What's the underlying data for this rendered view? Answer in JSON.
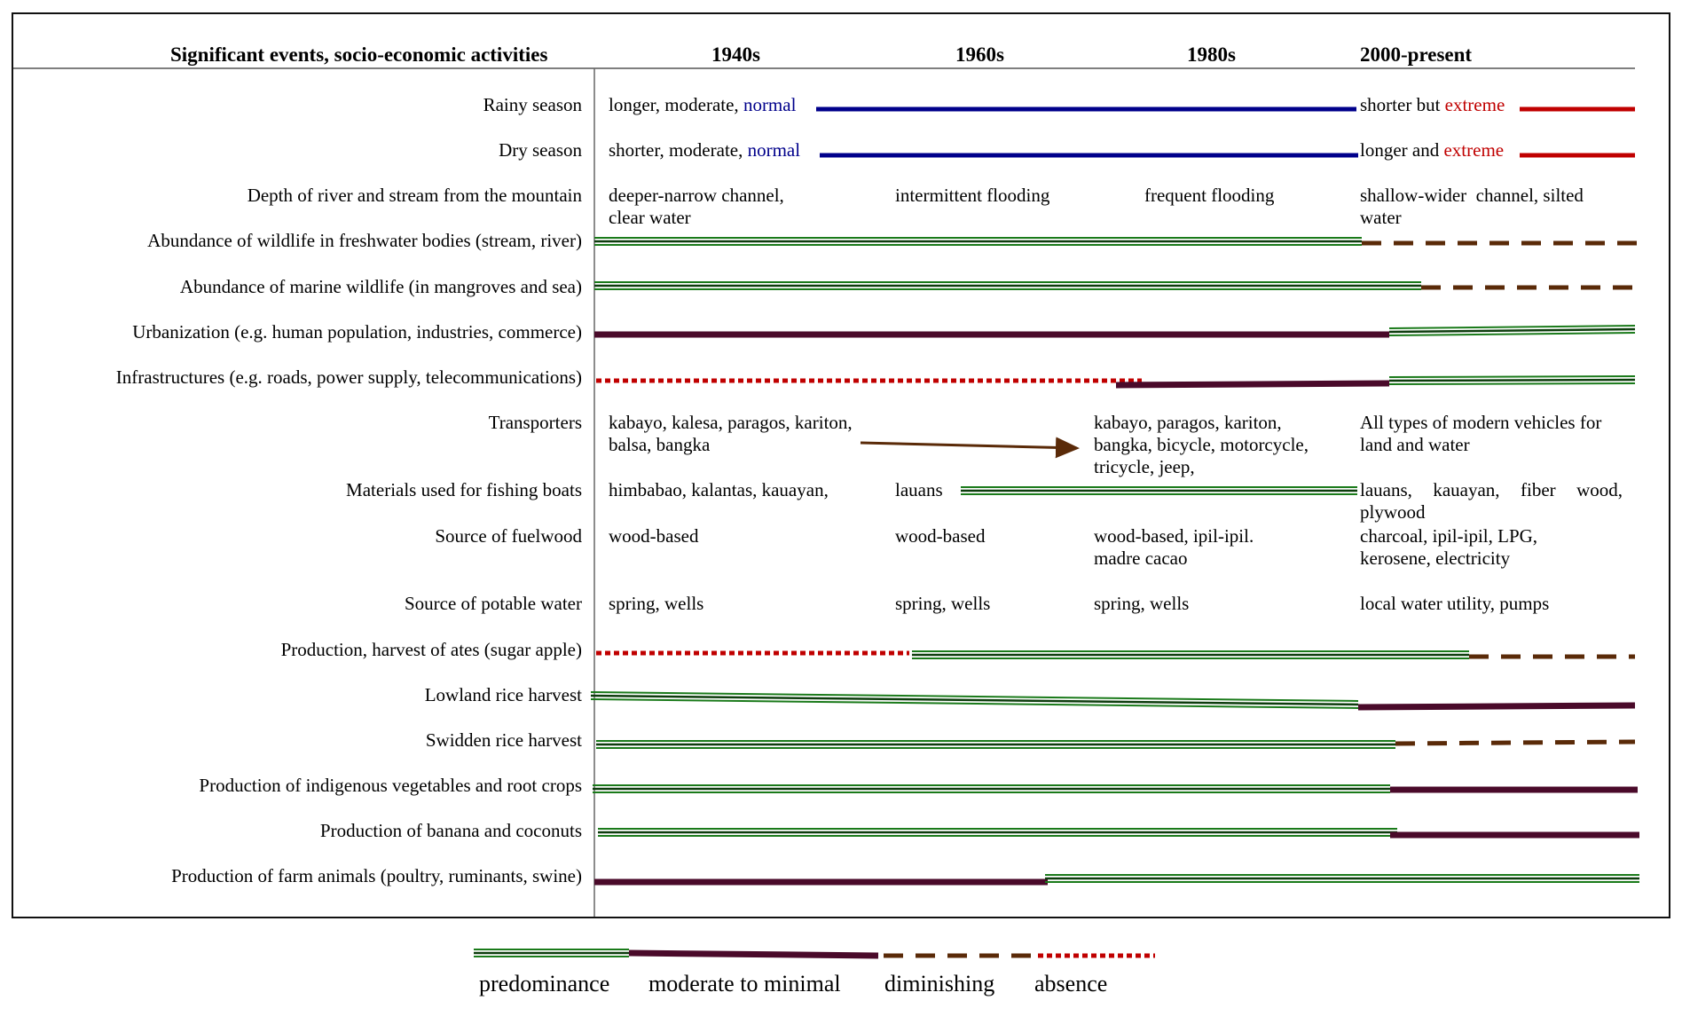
{
  "header": {
    "first_column": "Significant events, socio-economic activities",
    "periods": [
      "1940s",
      "1960s",
      "1980s",
      "2000-present"
    ]
  },
  "rows": [
    {
      "label": "Rainy season",
      "cells": {
        "c1940": "longer, moderate,",
        "c1940_accent": "normal",
        "c2000": "shorter but",
        "c2000_accent": "extreme"
      }
    },
    {
      "label": "Dry season",
      "cells": {
        "c1940": "shorter, moderate,",
        "c1940_accent": "normal",
        "c2000": "longer and",
        "c2000_accent": "extreme"
      }
    },
    {
      "label": "Depth of river and stream from the mountain",
      "cells": {
        "c1940_l1": "deeper-narrow channel,",
        "c1940_l2": "clear water",
        "c1960": "intermittent flooding",
        "c1980": "frequent flooding",
        "c2000_l1": "shallow-wider  channel, silted",
        "c2000_l2": "water"
      }
    },
    {
      "label": "Abundance of wildlife in freshwater bodies (stream, river)"
    },
    {
      "label": "Abundance of marine wildlife (in mangroves and sea)"
    },
    {
      "label": "Urbanization (e.g. human population, industries, commerce)"
    },
    {
      "label": "Infrastructures (e.g. roads, power supply, telecommunications)"
    },
    {
      "label": "Transporters",
      "cells": {
        "c1940_l1": "kabayo, kalesa, paragos, kariton,",
        "c1940_l2": "balsa, bangka",
        "c1980_l1": "kabayo, paragos, kariton,",
        "c1980_l2": "bangka, bicycle, motorcycle,",
        "c1980_l3": "tricycle, jeep,",
        "c2000_l1": "All types of modern vehicles for",
        "c2000_l2": "land and water"
      }
    },
    {
      "label": "Materials used for fishing boats",
      "cells": {
        "c1940": "himbabao, kalantas, kauayan,",
        "c1960": "lauans",
        "c2000_l1": "lauans,  kauayan,  fiber  wood,",
        "c2000_l2": "plywood"
      }
    },
    {
      "label": "Source of fuelwood",
      "cells": {
        "c1940": "wood-based",
        "c1960": "wood-based",
        "c1980_l1": "wood-based, ipil-ipil.",
        "c1980_l2": "madre cacao",
        "c2000_l1": "charcoal, ipil-ipil, LPG,",
        "c2000_l2": "kerosene, electricity"
      }
    },
    {
      "label": "Source of potable water",
      "cells": {
        "c1940": "spring, wells",
        "c1960": "spring, wells",
        "c1980": "spring, wells",
        "c2000": "local water utility, pumps"
      }
    },
    {
      "label": "Production, harvest of ates (sugar apple)"
    },
    {
      "label": "Lowland rice harvest"
    },
    {
      "label": "Swidden rice harvest"
    },
    {
      "label": "Production of indigenous vegetables and root crops"
    },
    {
      "label": "Production of banana and coconuts"
    },
    {
      "label": "Production of farm animals (poultry, ruminants, swine)"
    }
  ],
  "legend": {
    "predominance": "predominance",
    "moderate": "moderate to minimal",
    "diminishing": "diminishing",
    "absence": "absence"
  },
  "colors": {
    "predominance": "#1a7a1a",
    "moderate": "#4a0a2a",
    "diminishing": "#5a2a08",
    "absence": "#c00000",
    "season": "#00008b",
    "extreme": "#c00000",
    "arrow": "#5a2a08"
  }
}
